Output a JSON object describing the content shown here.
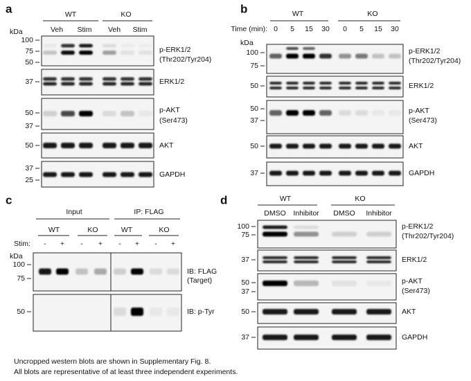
{
  "panels": [
    {
      "label": "a",
      "kda": "kDa",
      "groups": [
        {
          "label": "WT",
          "lanes": [
            "Veh",
            "Stim"
          ]
        },
        {
          "label": "KO",
          "lanes": [
            "Veh",
            "Stim"
          ]
        }
      ],
      "blots": [
        {
          "markers": [
            "100",
            "75",
            "50"
          ],
          "target": [
            "p-ERK1/2",
            "(Thr202/Tyr204)"
          ]
        },
        {
          "markers": [
            "37"
          ],
          "target": [
            "ERK1/2"
          ]
        },
        {
          "markers": [
            "50",
            "37"
          ],
          "target": [
            "p-AKT",
            "(Ser473)"
          ]
        },
        {
          "markers": [
            "50"
          ],
          "target": [
            "AKT"
          ]
        },
        {
          "markers": [
            "37",
            "25"
          ],
          "target": [
            "GAPDH"
          ]
        }
      ]
    },
    {
      "label": "b",
      "kda": "kDa",
      "time_label": "Time (min):",
      "groups": [
        {
          "label": "WT",
          "lanes": [
            "0",
            "5",
            "15",
            "30"
          ]
        },
        {
          "label": "KO",
          "lanes": [
            "0",
            "5",
            "15",
            "30"
          ]
        }
      ],
      "blots": [
        {
          "markers": [
            "100",
            "75"
          ],
          "target": [
            "p-ERK1/2",
            "(Thr202/Tyr204)"
          ]
        },
        {
          "markers": [
            "50"
          ],
          "target": [
            "ERK1/2"
          ]
        },
        {
          "markers": [
            "50",
            "37"
          ],
          "target": [
            "p-AKT",
            "(Ser473)"
          ]
        },
        {
          "markers": [
            "50"
          ],
          "target": [
            "AKT"
          ]
        },
        {
          "markers": [
            "37"
          ],
          "target": [
            "GAPDH"
          ]
        }
      ]
    },
    {
      "label": "c",
      "kda": "kDa",
      "stim_label": "Stim:",
      "sections": [
        {
          "label": "Input",
          "groups": [
            {
              "label": "WT",
              "lanes": [
                "-",
                "+"
              ]
            },
            {
              "label": "KO",
              "lanes": [
                "-",
                "+"
              ]
            }
          ]
        },
        {
          "label": "IP: FLAG",
          "groups": [
            {
              "label": "WT",
              "lanes": [
                "-",
                "+"
              ]
            },
            {
              "label": "KO",
              "lanes": [
                "-",
                "+"
              ]
            }
          ]
        }
      ],
      "blots": [
        {
          "markers": [
            "100",
            "75"
          ],
          "target": [
            "IB: FLAG",
            "(Target)"
          ]
        },
        {
          "markers": [
            "50"
          ],
          "target": [
            "IB: p-Tyr"
          ]
        }
      ]
    },
    {
      "label": "d",
      "groups": [
        {
          "label": "WT",
          "lanes": [
            "DMSO",
            "Inhibitor"
          ]
        },
        {
          "label": "KO",
          "lanes": [
            "DMSO",
            "Inhibitor"
          ]
        }
      ],
      "blots": [
        {
          "markers": [
            "100",
            "75"
          ],
          "target": [
            "p-ERK1/2",
            "(Thr202/Tyr204)"
          ]
        },
        {
          "markers": [
            "37"
          ],
          "target": [
            "ERK1/2"
          ]
        },
        {
          "markers": [
            "50",
            "37"
          ],
          "target": [
            "p-AKT",
            "(Ser473)"
          ]
        },
        {
          "markers": [
            "50"
          ],
          "target": [
            "AKT"
          ]
        },
        {
          "markers": [
            "37"
          ],
          "target": [
            "GAPDH"
          ]
        }
      ]
    }
  ],
  "footnote": [
    "Uncropped western blots are shown in Supplementary Fig. 8.",
    "All blots are representative of at least three independent experiments."
  ]
}
